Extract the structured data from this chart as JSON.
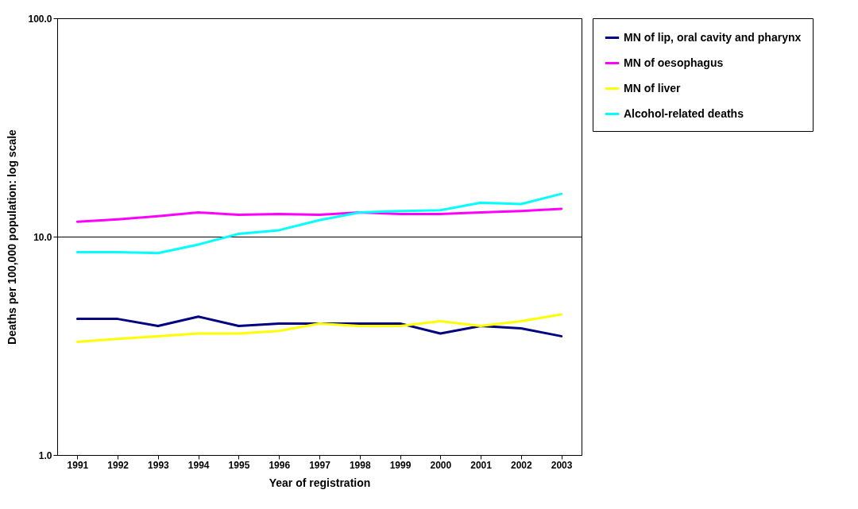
{
  "chart_data": {
    "type": "line",
    "xlabel": "Year of registration",
    "ylabel": "Deaths per 100,000 population: log scale",
    "categories": [
      "1991",
      "1992",
      "1993",
      "1994",
      "1995",
      "1996",
      "1997",
      "1998",
      "1999",
      "2000",
      "2001",
      "2002",
      "2003"
    ],
    "series": [
      {
        "name": "MN of lip, oral cavity and pharynx",
        "color": "#000080",
        "values": [
          4.2,
          4.2,
          3.9,
          4.3,
          3.9,
          4.0,
          4.0,
          4.0,
          4.0,
          3.6,
          3.9,
          3.8,
          3.5
        ]
      },
      {
        "name": "MN of oesophagus",
        "color": "#ff00ff",
        "values": [
          11.7,
          12.0,
          12.4,
          12.9,
          12.6,
          12.7,
          12.6,
          12.9,
          12.7,
          12.7,
          12.9,
          13.1,
          13.4
        ]
      },
      {
        "name": "MN of liver",
        "color": "#ffff00",
        "values": [
          3.3,
          3.4,
          3.5,
          3.6,
          3.6,
          3.7,
          4.0,
          3.9,
          3.9,
          4.1,
          3.9,
          4.1,
          4.4
        ]
      },
      {
        "name": "Alcohol-related deaths",
        "color": "#00ffff",
        "values": [
          8.5,
          8.5,
          8.4,
          9.2,
          10.3,
          10.7,
          11.9,
          12.9,
          13.1,
          13.2,
          14.3,
          14.1,
          15.7
        ]
      }
    ],
    "log": true,
    "ylim": [
      1,
      100
    ],
    "yticks": [
      {
        "value": 1,
        "label": "1.0"
      },
      {
        "value": 10,
        "label": "10.0"
      },
      {
        "value": 100,
        "label": "100.0"
      }
    ],
    "grid": "y",
    "legend": "right",
    "marker": "none",
    "line_style": "solid"
  }
}
